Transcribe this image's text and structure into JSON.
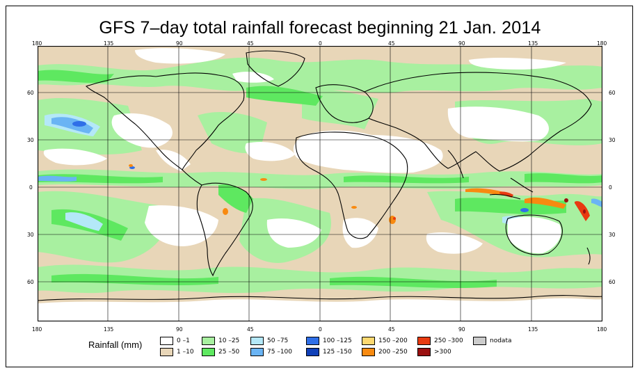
{
  "title": "GFS 7–day total rainfall forecast beginning 21 Jan. 2014",
  "axes": {
    "lon_ticks": [
      "180",
      "135",
      "90",
      "45",
      "0",
      "45",
      "90",
      "135",
      "180"
    ],
    "lat_ticks": [
      "60",
      "30",
      "0",
      "30",
      "60"
    ]
  },
  "legend": {
    "label": "Rainfall (mm)",
    "items": [
      {
        "label": "0 –1",
        "color": "#ffffff"
      },
      {
        "label": "1 –10",
        "color": "#e8d6b8"
      },
      {
        "label": "10 –25",
        "color": "#a8f0a0"
      },
      {
        "label": "25 –50",
        "color": "#5ee860"
      },
      {
        "label": "50 –75",
        "color": "#b4e8f8"
      },
      {
        "label": "75 –100",
        "color": "#6ab4f4"
      },
      {
        "label": "100 –125",
        "color": "#2f6fe8"
      },
      {
        "label": "125 –150",
        "color": "#1040b8"
      },
      {
        "label": "150 –200",
        "color": "#fcd870"
      },
      {
        "label": "200 –250",
        "color": "#f88a10"
      },
      {
        "label": "250 –300",
        "color": "#e83a10"
      },
      {
        "label": ">300",
        "color": "#9a1010"
      },
      {
        "label": "nodata",
        "color": "#cccccc"
      }
    ]
  },
  "map": {
    "base_color": "#e8d6b8",
    "ocean_rain_color": "#a8f0a0",
    "land_dry_color": "#ffffff"
  }
}
